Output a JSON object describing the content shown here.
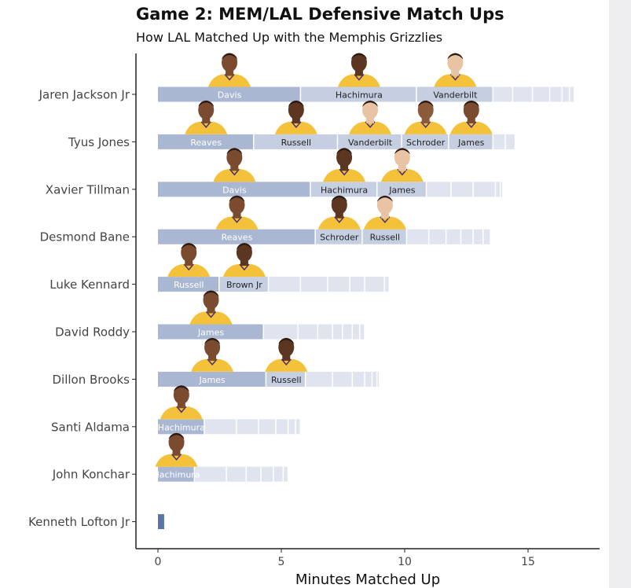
{
  "title": "Game 2: MEM/LAL Defensive Match Ups",
  "subtitle": "How LAL Matched Up with the Memphis Grizzlies",
  "chart_data": {
    "type": "bar",
    "orientation": "horizontal",
    "stacked": true,
    "title": "Game 2: MEM/LAL Defensive Match Ups",
    "subtitle": "How LAL Matched Up with the Memphis Grizzlies",
    "xlabel": "Minutes Matched Up",
    "ylabel": "",
    "xlim": [
      -0.9,
      17.9
    ],
    "xticks": [
      0,
      5,
      10,
      15
    ],
    "grid": false,
    "colors": {
      "top_segment": "#aab7d2",
      "labeled_segment": "#c6cfe2",
      "minor_segment": "#dfe4ef",
      "single_bar": "#5a73a8",
      "jersey_gold": "#f4c23a",
      "axis": "#222222"
    },
    "categories": [
      "Jaren Jackson Jr",
      "Tyus Jones",
      "Xavier Tillman",
      "Desmond Bane",
      "Luke Kennard",
      "David Roddy",
      "Dillon Brooks",
      "Santi Aldama",
      "John Konchar",
      "Kenneth Lofton Jr"
    ],
    "matchups": [
      {
        "player": "Jaren Jackson Jr",
        "segments": [
          {
            "name": "Davis",
            "minutes": 5.8
          },
          {
            "name": "Hachimura",
            "minutes": 4.7
          },
          {
            "name": "Vanderbilt",
            "minutes": 3.1
          },
          {
            "name": "",
            "minutes": 0.8
          },
          {
            "name": "",
            "minutes": 0.8
          },
          {
            "name": "",
            "minutes": 0.7
          },
          {
            "name": "",
            "minutes": 0.5
          },
          {
            "name": "",
            "minutes": 0.3
          },
          {
            "name": "",
            "minutes": 0.2
          }
        ]
      },
      {
        "player": "Tyus Jones",
        "segments": [
          {
            "name": "Reaves",
            "minutes": 3.9
          },
          {
            "name": "Russell",
            "minutes": 3.4
          },
          {
            "name": "Vanderbilt",
            "minutes": 2.6
          },
          {
            "name": "Schroder",
            "minutes": 1.9
          },
          {
            "name": "James",
            "minutes": 1.8
          },
          {
            "name": "",
            "minutes": 0.5
          },
          {
            "name": "",
            "minutes": 0.4
          }
        ]
      },
      {
        "player": "Xavier Tillman",
        "segments": [
          {
            "name": "Davis",
            "minutes": 6.2
          },
          {
            "name": "Hachimura",
            "minutes": 2.7
          },
          {
            "name": "James",
            "minutes": 2.0
          },
          {
            "name": "",
            "minutes": 1.0
          },
          {
            "name": "",
            "minutes": 0.9
          },
          {
            "name": "",
            "minutes": 0.9
          },
          {
            "name": "",
            "minutes": 0.2
          },
          {
            "name": "",
            "minutes": 0.1
          }
        ]
      },
      {
        "player": "Desmond Bane",
        "segments": [
          {
            "name": "Reaves",
            "minutes": 6.4
          },
          {
            "name": "Schroder",
            "minutes": 1.9
          },
          {
            "name": "Russell",
            "minutes": 1.8
          },
          {
            "name": "",
            "minutes": 0.9
          },
          {
            "name": "",
            "minutes": 0.7
          },
          {
            "name": "",
            "minutes": 0.6
          },
          {
            "name": "",
            "minutes": 0.5
          },
          {
            "name": "",
            "minutes": 0.4
          },
          {
            "name": "",
            "minutes": 0.3
          }
        ]
      },
      {
        "player": "Luke Kennard",
        "segments": [
          {
            "name": "Russell",
            "minutes": 2.5
          },
          {
            "name": "Brown Jr",
            "minutes": 2.0
          },
          {
            "name": "",
            "minutes": 1.3
          },
          {
            "name": "",
            "minutes": 1.1
          },
          {
            "name": "",
            "minutes": 0.9
          },
          {
            "name": "",
            "minutes": 0.6
          },
          {
            "name": "",
            "minutes": 0.8
          },
          {
            "name": "",
            "minutes": 0.2
          }
        ]
      },
      {
        "player": "David Roddy",
        "segments": [
          {
            "name": "James",
            "minutes": 4.3
          },
          {
            "name": "",
            "minutes": 1.4
          },
          {
            "name": "",
            "minutes": 0.8
          },
          {
            "name": "",
            "minutes": 0.6
          },
          {
            "name": "",
            "minutes": 0.4
          },
          {
            "name": "",
            "minutes": 0.4
          },
          {
            "name": "",
            "minutes": 0.3
          },
          {
            "name": "",
            "minutes": 0.2
          }
        ]
      },
      {
        "player": "Dillon Brooks",
        "segments": [
          {
            "name": "James",
            "minutes": 4.4
          },
          {
            "name": "Russell",
            "minutes": 1.6
          },
          {
            "name": "",
            "minutes": 1.1
          },
          {
            "name": "",
            "minutes": 0.8
          },
          {
            "name": "",
            "minutes": 0.5
          },
          {
            "name": "",
            "minutes": 0.3
          },
          {
            "name": "",
            "minutes": 0.2
          },
          {
            "name": "",
            "minutes": 0.1
          }
        ]
      },
      {
        "player": "Santi Aldama",
        "segments": [
          {
            "name": "Hachimura",
            "minutes": 1.9
          },
          {
            "name": "",
            "minutes": 1.3
          },
          {
            "name": "",
            "minutes": 0.9
          },
          {
            "name": "",
            "minutes": 0.7
          },
          {
            "name": "",
            "minutes": 0.5
          },
          {
            "name": "",
            "minutes": 0.3
          },
          {
            "name": "",
            "minutes": 0.2
          }
        ]
      },
      {
        "player": "John Konchar",
        "segments": [
          {
            "name": "Hachimura",
            "minutes": 1.5
          },
          {
            "name": "",
            "minutes": 1.3
          },
          {
            "name": "",
            "minutes": 0.8
          },
          {
            "name": "",
            "minutes": 0.6
          },
          {
            "name": "",
            "minutes": 0.5
          },
          {
            "name": "",
            "minutes": 0.4
          },
          {
            "name": "",
            "minutes": 0.2
          }
        ]
      },
      {
        "player": "Kenneth Lofton Jr",
        "segments": [
          {
            "name": "",
            "minutes": 0.3
          }
        ]
      }
    ]
  }
}
